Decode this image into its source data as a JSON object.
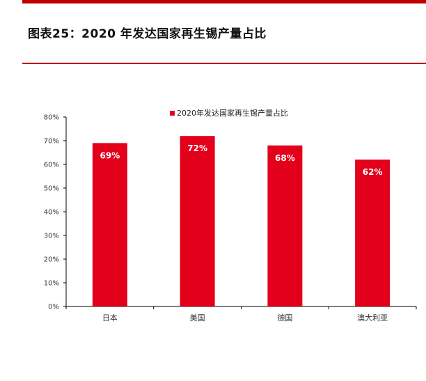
{
  "header": {
    "title": "图表25：2020 年发达国家再生锡产量占比"
  },
  "colors": {
    "accent": "#c00000",
    "bar": "#e3001b"
  },
  "chart_data": {
    "type": "bar",
    "categories": [
      "日本",
      "美国",
      "德国",
      "澳大利亚"
    ],
    "series": [
      {
        "name": "2020年发达国家再生锡产量占比",
        "values": [
          69,
          72,
          68,
          62
        ],
        "labels": [
          "69%",
          "72%",
          "68%",
          "62%"
        ]
      }
    ],
    "ylim": [
      0,
      80
    ],
    "yticks": [
      "0%",
      "10%",
      "20%",
      "30%",
      "40%",
      "50%",
      "60%",
      "70%",
      "80%"
    ],
    "grid": false,
    "legend": "top-center"
  }
}
